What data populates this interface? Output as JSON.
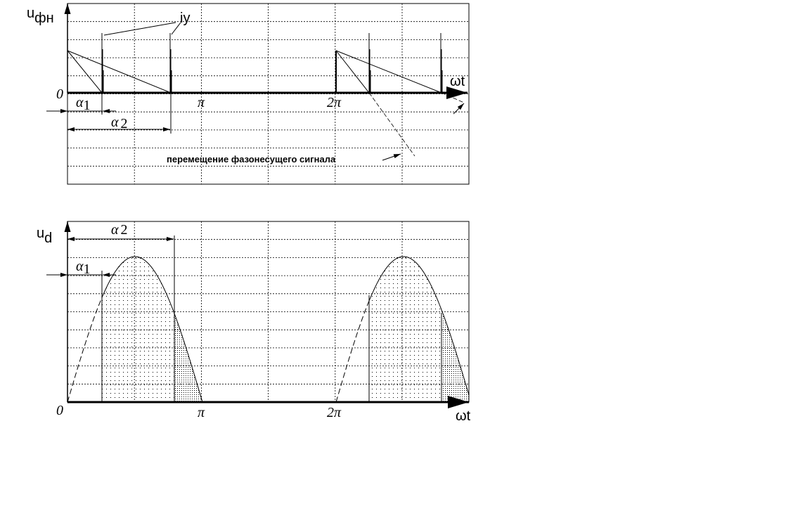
{
  "top_plot": {
    "y_label_main": "u",
    "y_label_sub": "фн",
    "x_label": "ωt",
    "origin_label": "0",
    "tick_pi": "π",
    "tick_2pi": "2π",
    "pulse_label": "iy",
    "alpha1_label": "α",
    "alpha1_sub": "1",
    "alpha2_label": "α",
    "alpha2_sub": "2",
    "annotation": "перемещение фазонесущего сигнала"
  },
  "bottom_plot": {
    "y_label_main": "u",
    "y_label_sub": "d",
    "x_label": "ωt",
    "origin_label": "0",
    "tick_pi": "π",
    "tick_2pi": "2π",
    "alpha1_label": "α",
    "alpha1_sub": "1",
    "alpha2_label": "α",
    "alpha2_sub": "2"
  },
  "colors": {
    "line": "#000000",
    "background": "#ffffff"
  }
}
